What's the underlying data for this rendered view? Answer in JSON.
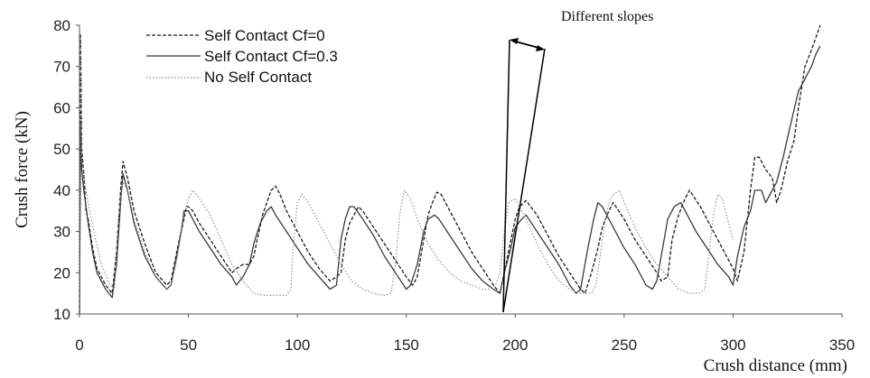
{
  "chart_data": {
    "type": "line",
    "title": "",
    "xlabel": "Crush distance (mm)",
    "ylabel": "Crush force (kN)",
    "xlim": [
      0,
      350
    ],
    "ylim": [
      10,
      80
    ],
    "xticks": [
      0,
      50,
      100,
      150,
      200,
      250,
      300,
      350
    ],
    "yticks": [
      10,
      20,
      30,
      40,
      50,
      60,
      70,
      80
    ],
    "xtick_labels": [
      "0",
      "50",
      "100",
      "150",
      "200",
      "250",
      "300",
      "350"
    ],
    "ytick_labels": [
      "10",
      "20",
      "30",
      "40",
      "50",
      "60",
      "70",
      "80"
    ],
    "grid": false,
    "legend_position": "top-left",
    "annotation": "Different slopes",
    "series": [
      {
        "name": "Self Contact Cf=0",
        "style": "dashed",
        "color": "#1a1a1a",
        "x": [
          0,
          0.5,
          1,
          2,
          3,
          4,
          6,
          8,
          12,
          15,
          17,
          19,
          20,
          22,
          25,
          30,
          35,
          40,
          42,
          45,
          48,
          49,
          50,
          52,
          55,
          60,
          65,
          70,
          72,
          75,
          78,
          80,
          82,
          84,
          86,
          88,
          90,
          92,
          95,
          100,
          105,
          110,
          115,
          118,
          120,
          122,
          124,
          126,
          128,
          130,
          135,
          140,
          145,
          150,
          153,
          155,
          157,
          160,
          162,
          164,
          166,
          170,
          175,
          180,
          185,
          190,
          193,
          195,
          198,
          200,
          202,
          205,
          210,
          215,
          220,
          225,
          230,
          232,
          235,
          238,
          240,
          243,
          245,
          250,
          255,
          260,
          265,
          267,
          270,
          272,
          275,
          278,
          280,
          285,
          290,
          295,
          300,
          302,
          305,
          308,
          310,
          312,
          315,
          318,
          320,
          322,
          325,
          328,
          330,
          333,
          336,
          338,
          340
        ],
        "y": [
          10,
          78,
          50,
          44,
          35,
          33,
          26,
          21,
          17,
          15,
          25,
          41,
          47,
          43,
          35,
          27,
          20,
          17,
          18,
          26,
          33,
          36,
          36,
          35,
          32,
          28,
          24,
          20,
          21,
          22,
          22,
          24,
          29,
          34,
          37,
          40,
          41,
          39,
          35,
          30,
          25,
          21,
          18,
          19,
          20,
          28,
          32,
          34,
          36,
          35,
          31,
          27,
          23,
          19,
          17,
          19,
          25,
          34,
          37,
          39.5,
          39,
          35,
          30,
          25,
          21,
          17,
          15,
          20,
          28,
          33,
          36,
          37.5,
          34,
          29,
          24,
          20,
          16,
          15,
          20,
          26,
          31,
          35,
          37,
          33,
          28,
          24,
          20,
          18,
          19,
          28,
          34,
          38,
          40,
          36,
          31,
          26,
          21,
          18,
          25,
          40,
          48,
          48,
          45,
          43,
          37,
          40,
          47,
          52,
          60,
          70,
          74,
          77,
          80
        ]
      },
      {
        "name": "Self Contact Cf=0.3",
        "style": "solid",
        "color": "#3a3a3a",
        "x": [
          0,
          0.5,
          1,
          2,
          3,
          4,
          6,
          8,
          12,
          15,
          17,
          19,
          20,
          22,
          25,
          30,
          35,
          40,
          42,
          45,
          47,
          48,
          50,
          52,
          55,
          60,
          65,
          70,
          72,
          75,
          78,
          80,
          83,
          86,
          88,
          90,
          95,
          100,
          105,
          110,
          115,
          118,
          120,
          122,
          124,
          126,
          130,
          135,
          140,
          145,
          150,
          152,
          155,
          158,
          160,
          163,
          165,
          170,
          175,
          180,
          185,
          190,
          193,
          195,
          198,
          200,
          203,
          205,
          210,
          215,
          220,
          225,
          228,
          230,
          233,
          236,
          238,
          240,
          245,
          250,
          255,
          260,
          263,
          265,
          268,
          270,
          273,
          276,
          278,
          283,
          288,
          293,
          298,
          300,
          302,
          305,
          308,
          310,
          313,
          315,
          318,
          320,
          323,
          326,
          330,
          333,
          336,
          338,
          340
        ],
        "y": [
          10,
          56,
          45,
          40,
          36,
          32,
          25,
          20,
          16,
          14,
          22,
          38,
          44,
          40,
          32,
          24,
          19,
          16,
          17,
          25,
          31,
          35,
          35,
          33,
          30,
          26,
          22,
          19,
          17,
          19,
          22,
          27,
          32,
          35,
          36,
          34,
          30,
          26,
          22,
          19,
          16,
          17,
          28,
          33,
          36,
          36,
          33,
          29,
          24,
          20,
          16,
          17,
          22,
          30,
          33,
          34,
          33,
          29,
          25,
          21,
          18,
          16,
          15,
          20,
          26,
          31,
          33,
          34,
          30,
          26,
          22,
          17,
          15,
          16,
          25,
          33,
          37,
          36,
          31,
          26,
          22,
          17,
          16,
          18,
          27,
          33,
          36,
          37,
          35,
          30,
          26,
          22,
          19,
          17,
          24,
          31,
          35,
          40,
          40,
          37,
          40,
          42,
          48,
          55,
          64,
          67,
          70,
          73,
          75
        ]
      },
      {
        "name": "No Self Contact",
        "style": "dotted",
        "color": "#8a8a8a",
        "x": [
          0,
          0.5,
          1,
          2,
          4,
          7,
          10,
          14,
          16,
          18,
          20,
          22,
          25,
          30,
          35,
          40,
          42,
          45,
          48,
          50,
          52,
          55,
          60,
          65,
          70,
          75,
          80,
          85,
          90,
          95,
          97,
          98,
          100,
          102,
          105,
          110,
          115,
          120,
          125,
          130,
          135,
          140,
          143,
          145,
          147,
          149,
          152,
          155,
          160,
          165,
          170,
          175,
          180,
          185,
          188,
          191,
          193,
          195,
          197,
          200,
          205,
          210,
          215,
          220,
          225,
          230,
          235,
          237,
          239,
          241,
          243,
          245,
          248,
          250,
          255,
          260,
          265,
          270,
          275,
          280,
          285,
          287,
          289,
          291,
          293,
          295,
          300
        ],
        "y": [
          10,
          78,
          48,
          43,
          37,
          29,
          22,
          17,
          16,
          34,
          42,
          40,
          33,
          25,
          19,
          16,
          17,
          24,
          34,
          38,
          40,
          38,
          34,
          28,
          22,
          18,
          15,
          14.5,
          14.5,
          14.5,
          16,
          25,
          37,
          39,
          37,
          32,
          27,
          22,
          18,
          16,
          15,
          14.5,
          15,
          22,
          34,
          40,
          38,
          33,
          27,
          23,
          20,
          18,
          17,
          16,
          16,
          17,
          20,
          30,
          37,
          38,
          33,
          27,
          22,
          18,
          16,
          15,
          15,
          17,
          24,
          32,
          37,
          39,
          40,
          37,
          31,
          26,
          22,
          19,
          16,
          15,
          15,
          16,
          25,
          34,
          39,
          38,
          28
        ]
      }
    ]
  }
}
